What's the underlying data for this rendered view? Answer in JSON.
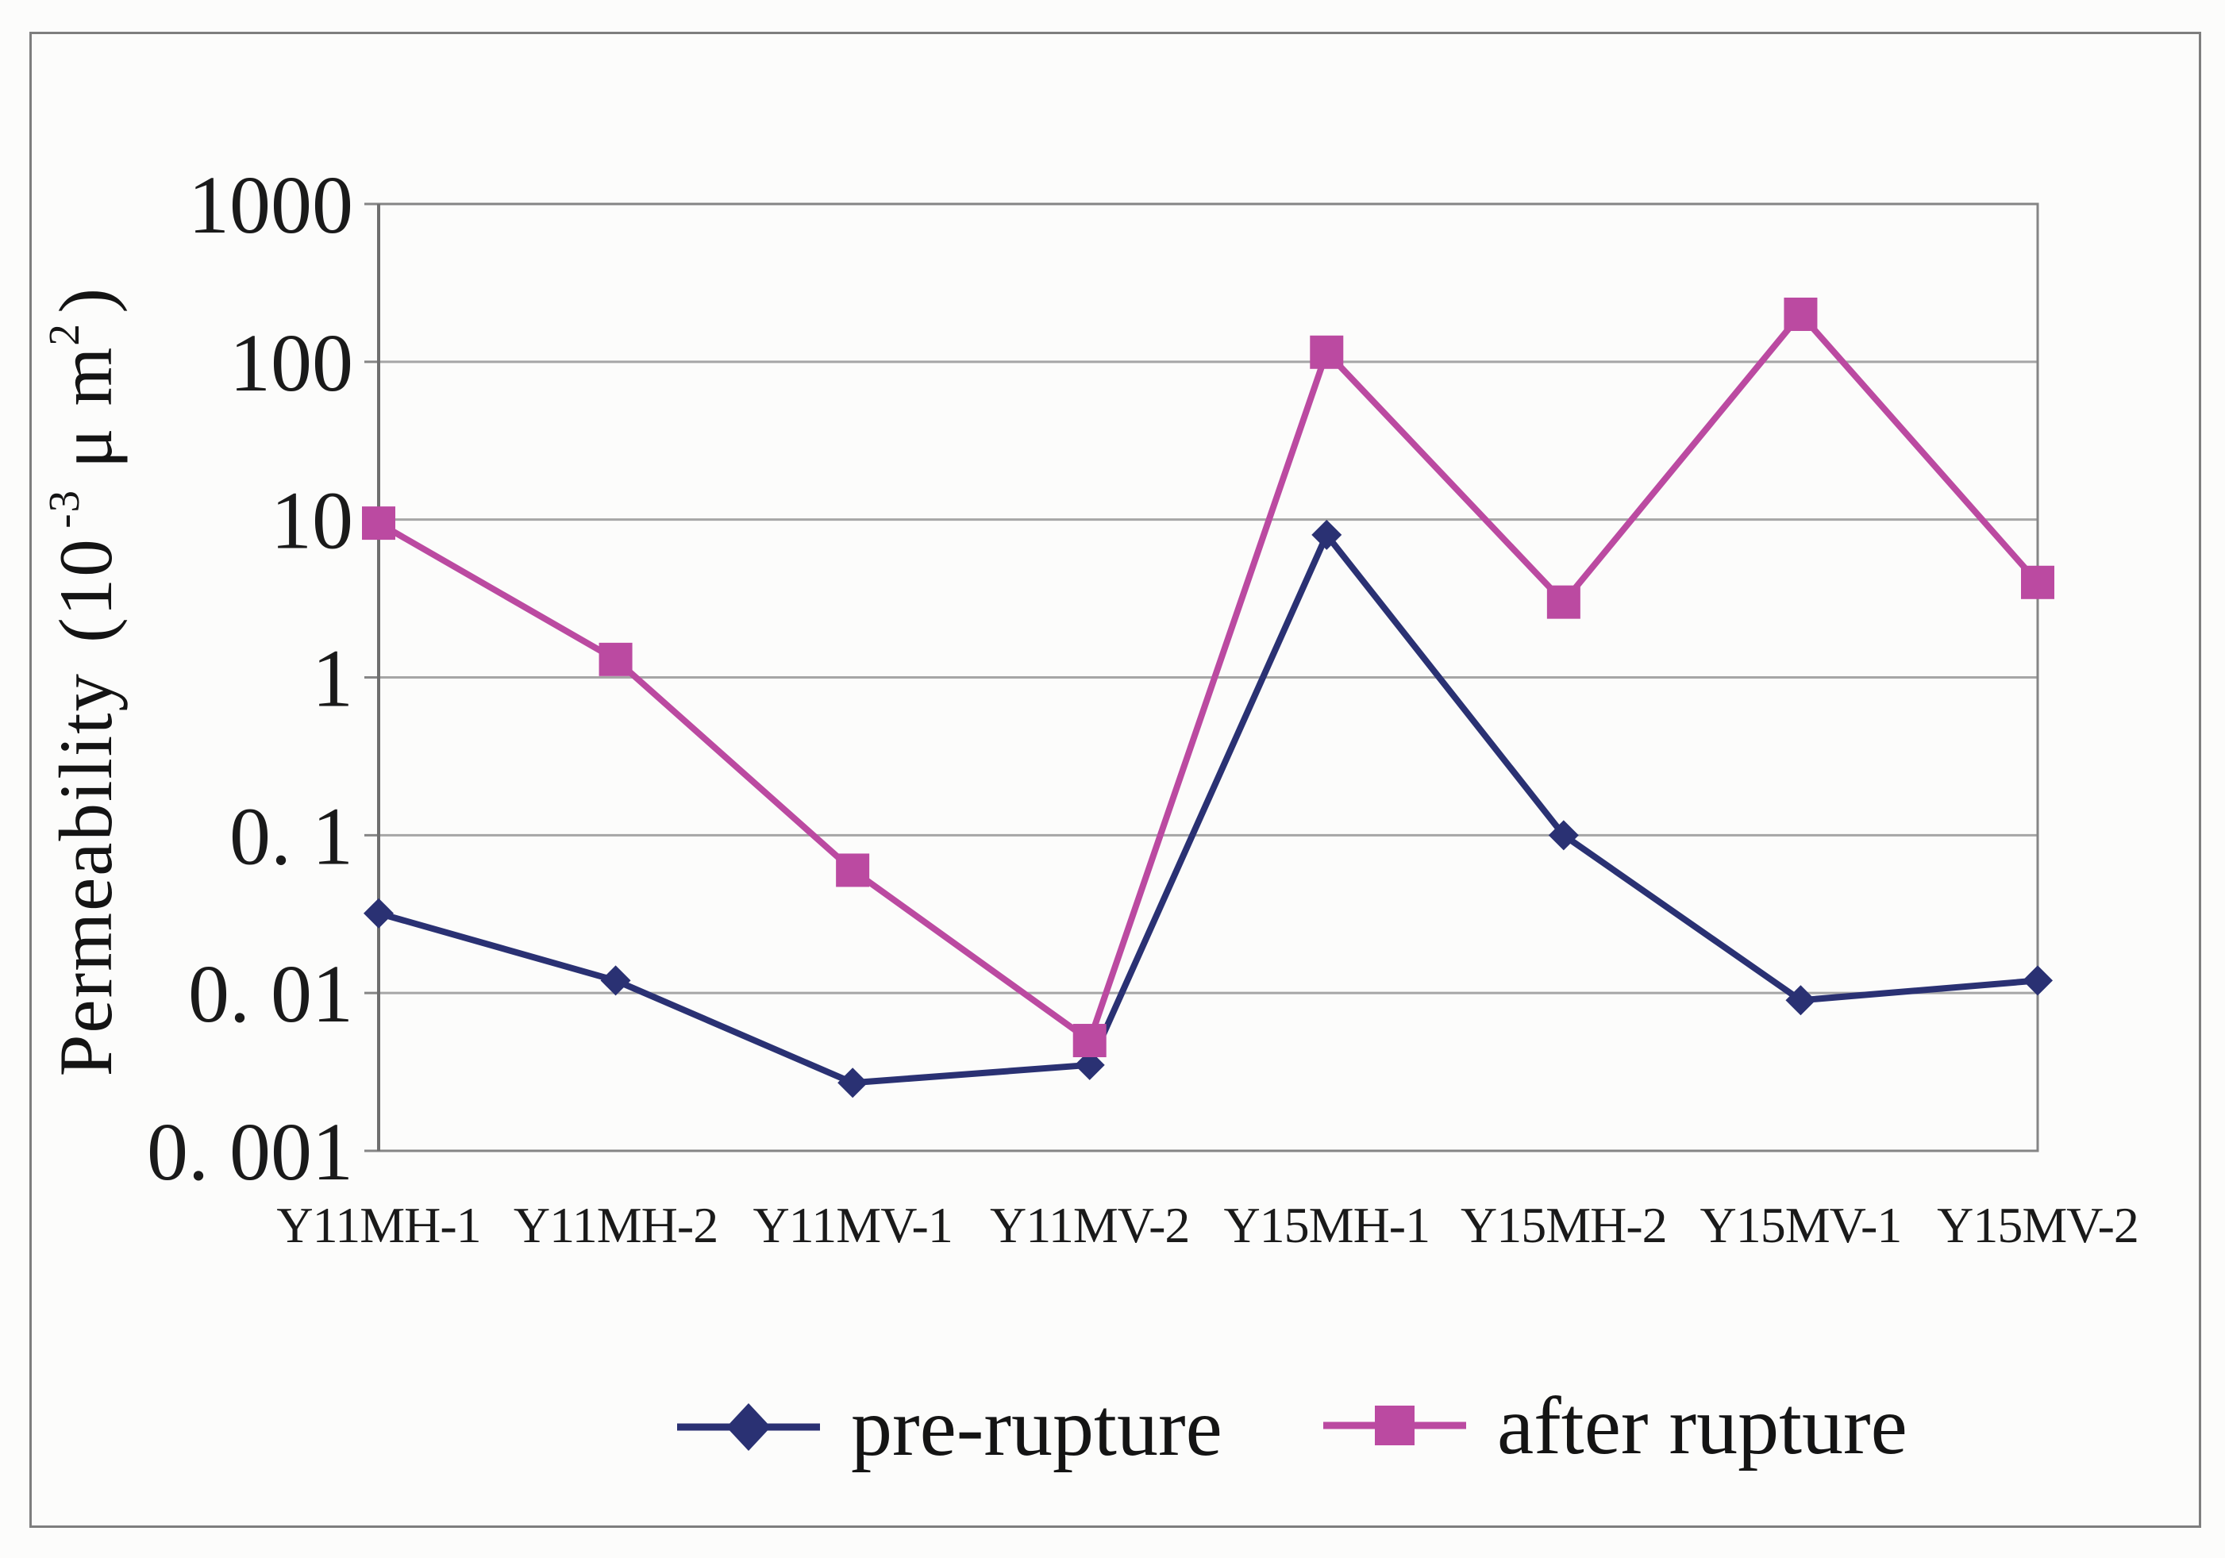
{
  "figure": {
    "background": "#fcfcfb",
    "frame_color": "#7e7e7e",
    "text_color": "#161616"
  },
  "chart_data": {
    "type": "line",
    "categories": [
      "Y11MH-1",
      "Y11MH-2",
      "Y11MV-1",
      "Y11MV-2",
      "Y15MH-1",
      "Y15MH-2",
      "Y15MV-1",
      "Y15MV-2"
    ],
    "series": [
      {
        "name": "pre-rupture",
        "marker": "diamond",
        "color": "#2a3173",
        "values": [
          0.032,
          0.012,
          0.0027,
          0.0035,
          8,
          0.1,
          0.009,
          0.012
        ]
      },
      {
        "name": "after rupture",
        "marker": "square",
        "color": "#bb4aa1",
        "values": [
          9.5,
          1.3,
          0.06,
          0.005,
          115,
          3,
          200,
          4
        ]
      }
    ],
    "ylabel": "Permeability (10⁻³ μ m²)",
    "y_axis_label_parts": {
      "word": "Permeability ",
      "open": "(10",
      "exponent": "-3",
      "unit_mid": " μ m",
      "unit_sup": "2",
      "close": ")"
    },
    "xlabel": "",
    "y_scale": "log",
    "ylim": [
      0.001,
      1000
    ],
    "y_ticks": [
      {
        "label": "1000",
        "value": 1000
      },
      {
        "label": "100",
        "value": 100
      },
      {
        "label": "10",
        "value": 10
      },
      {
        "label": "1",
        "value": 1
      },
      {
        "label": "0. 1",
        "value": 0.1
      },
      {
        "label": "0. 01",
        "value": 0.01
      },
      {
        "label": "0. 001",
        "value": 0.001
      }
    ],
    "grid": "horizontal",
    "grid_color": "#a6a6a6",
    "axis_color": "#858585",
    "legend_position": "bottom"
  },
  "legend": {
    "items": [
      {
        "label": "pre-rupture"
      },
      {
        "label": "after rupture"
      }
    ]
  }
}
